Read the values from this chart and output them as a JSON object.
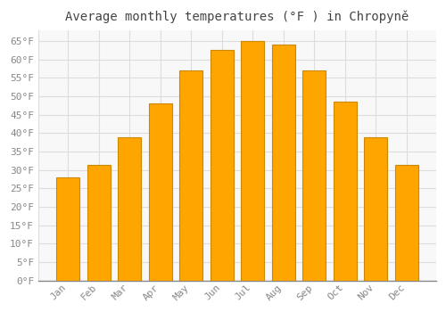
{
  "title": "Average monthly temperatures (°F ) in Chropyně",
  "months": [
    "Jan",
    "Feb",
    "Mar",
    "Apr",
    "May",
    "Jun",
    "Jul",
    "Aug",
    "Sep",
    "Oct",
    "Nov",
    "Dec"
  ],
  "values": [
    28,
    31.5,
    39,
    48,
    57,
    62.5,
    65,
    64,
    57,
    48.5,
    39,
    31.5
  ],
  "bar_color": "#FFA500",
  "bar_edge_color": "#CC8800",
  "background_color": "#FFFFFF",
  "plot_bg_color": "#F8F8F8",
  "grid_color": "#DDDDDD",
  "text_color": "#888888",
  "title_color": "#444444",
  "ylim": [
    0,
    68
  ],
  "yticks": [
    0,
    5,
    10,
    15,
    20,
    25,
    30,
    35,
    40,
    45,
    50,
    55,
    60,
    65
  ],
  "ylabel_suffix": "°F",
  "title_fontsize": 10,
  "tick_fontsize": 8
}
